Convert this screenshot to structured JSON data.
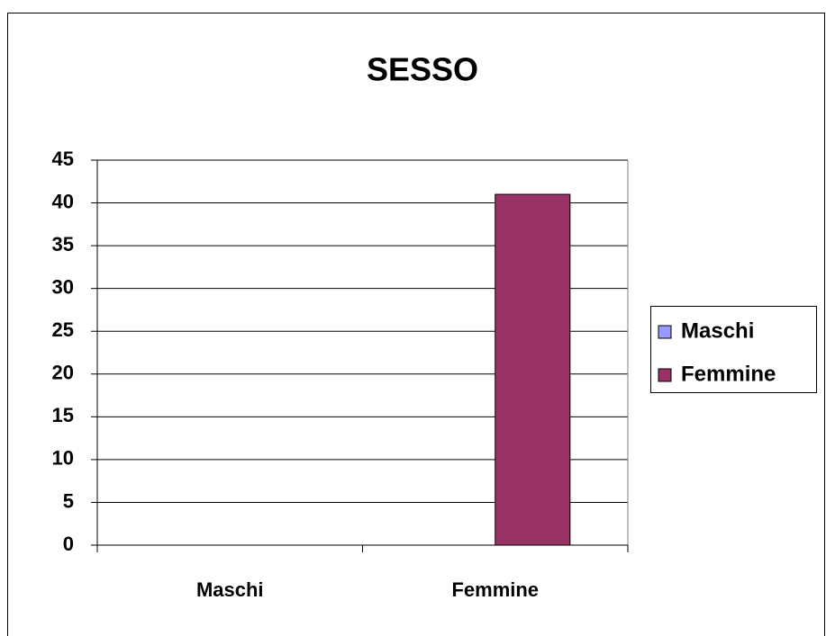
{
  "chart_data": {
    "type": "bar",
    "title": "SESSO",
    "categories": [
      "Maschi",
      "Femmine"
    ],
    "series": [
      {
        "name": "Maschi",
        "color": "#9999ff",
        "values": [
          0,
          null
        ]
      },
      {
        "name": "Femmine",
        "color": "#993366",
        "values": [
          null,
          41
        ]
      }
    ],
    "ylim": [
      0,
      45
    ],
    "yticks": [
      0,
      5,
      10,
      15,
      20,
      25,
      30,
      35,
      40,
      45
    ],
    "grid": true,
    "legend": "right"
  }
}
